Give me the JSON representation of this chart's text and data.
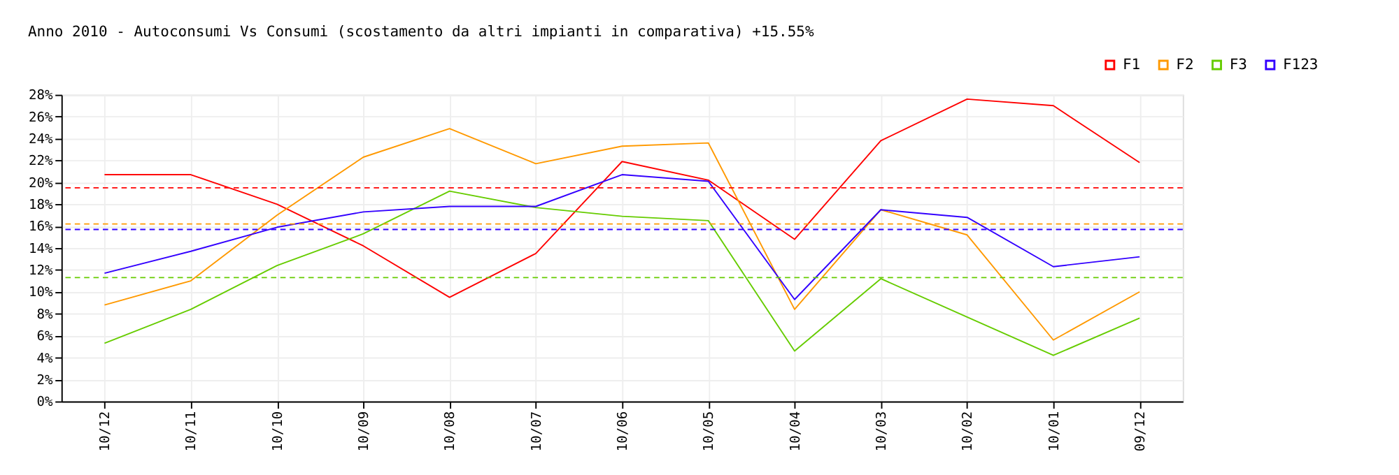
{
  "chart_data": {
    "type": "line",
    "title": "Anno 2010 - Autoconsumi Vs Consumi (scostamento da altri impianti in comparativa) +15.55%",
    "categories": [
      "10/12",
      "10/11",
      "10/10",
      "10/09",
      "10/08",
      "10/07",
      "10/06",
      "10/05",
      "10/04",
      "10/03",
      "10/02",
      "10/01",
      "09/12"
    ],
    "series": [
      {
        "name": "F1",
        "color": "#ff0000",
        "values": [
          20.7,
          20.7,
          18.0,
          14.2,
          9.5,
          13.5,
          21.9,
          20.2,
          14.8,
          23.8,
          27.6,
          27.0,
          21.8
        ]
      },
      {
        "name": "F2",
        "color": "#ff9900",
        "values": [
          8.8,
          11.0,
          17.0,
          22.3,
          24.9,
          21.7,
          23.3,
          23.6,
          8.4,
          17.5,
          15.2,
          5.6,
          10.0
        ]
      },
      {
        "name": "F3",
        "color": "#66cc00",
        "values": [
          5.3,
          8.4,
          12.4,
          15.3,
          19.2,
          17.7,
          16.9,
          16.5,
          4.6,
          11.2,
          7.7,
          4.2,
          7.6
        ]
      },
      {
        "name": "F123",
        "color": "#3300ff",
        "values": [
          11.7,
          13.7,
          15.9,
          17.3,
          17.8,
          17.8,
          20.7,
          20.1,
          9.3,
          17.5,
          16.8,
          12.3,
          13.2
        ]
      }
    ],
    "ylim": [
      0,
      28
    ],
    "yticks": [
      {
        "value": 0,
        "label": "0%"
      },
      {
        "value": 2,
        "label": "2%"
      },
      {
        "value": 4,
        "label": "4%"
      },
      {
        "value": 6,
        "label": "6%"
      },
      {
        "value": 8,
        "label": "8%"
      },
      {
        "value": 10,
        "label": "10%"
      },
      {
        "value": 12,
        "label": "12%"
      },
      {
        "value": 14,
        "label": "14%"
      },
      {
        "value": 16,
        "label": "16%"
      },
      {
        "value": 18,
        "label": "18%"
      },
      {
        "value": 20,
        "label": "20%"
      },
      {
        "value": 22,
        "label": "22%"
      },
      {
        "value": 24,
        "label": "24%"
      },
      {
        "value": 26,
        "label": "26%"
      },
      {
        "value": 28,
        "label": "28%"
      }
    ],
    "ref_lines": [
      {
        "axis": "y",
        "value": 19.5,
        "color": "#ff0000",
        "line_style": "dashed"
      },
      {
        "axis": "y",
        "value": 16.2,
        "color": "#ff9900",
        "line_style": "dashed"
      },
      {
        "axis": "y",
        "value": 15.7,
        "color": "#3300ff",
        "line_style": "dashed"
      },
      {
        "axis": "y",
        "value": 11.3,
        "color": "#66cc00",
        "line_style": "dashed"
      }
    ],
    "grid": true,
    "legend": "top right",
    "marker": "none",
    "line_style": "solid"
  }
}
